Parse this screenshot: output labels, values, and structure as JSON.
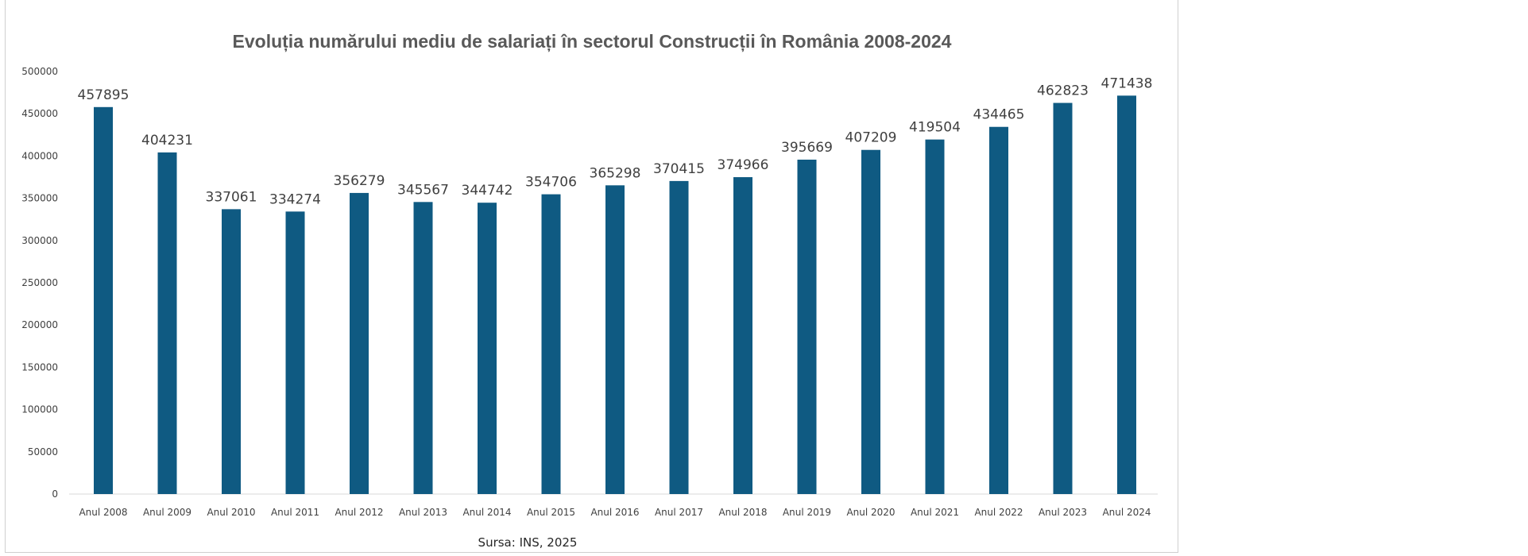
{
  "chart_data": {
    "type": "bar",
    "title": "Evoluția numărului mediu de salariați în sectorul Construcții în România 2008-2024",
    "categories": [
      "Anul 2008",
      "Anul 2009",
      "Anul 2010",
      "Anul 2011",
      "Anul 2012",
      "Anul 2013",
      "Anul 2014",
      "Anul 2015",
      "Anul 2016",
      "Anul 2017",
      "Anul 2018",
      "Anul 2019",
      "Anul 2020",
      "Anul 2021",
      "Anul 2022",
      "Anul 2023",
      "Anul 2024"
    ],
    "values": [
      457895,
      404231,
      337061,
      334274,
      356279,
      345567,
      344742,
      354706,
      365298,
      370415,
      374966,
      395669,
      407209,
      419504,
      434465,
      462823,
      471438
    ],
    "xlabel": "",
    "ylabel": "",
    "ylim": [
      0,
      500000
    ],
    "yticks": [
      0,
      50000,
      100000,
      150000,
      200000,
      250000,
      300000,
      350000,
      400000,
      450000,
      500000
    ],
    "grid": false,
    "data_labels": true,
    "bar_color": "#0f5a82",
    "source": "Sursa: INS, 2025"
  }
}
